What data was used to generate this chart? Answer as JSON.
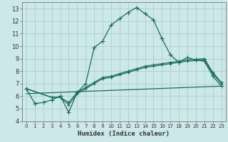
{
  "xlabel": "Humidex (Indice chaleur)",
  "bg_color": "#cde8e8",
  "grid_color": "#aacfcf",
  "line_color": "#1a6b5a",
  "xlim": [
    -0.5,
    23.5
  ],
  "ylim": [
    4,
    13.5
  ],
  "xticks": [
    0,
    1,
    2,
    3,
    4,
    5,
    6,
    7,
    8,
    9,
    10,
    11,
    12,
    13,
    14,
    15,
    16,
    17,
    18,
    19,
    20,
    21,
    22,
    23
  ],
  "yticks": [
    4,
    5,
    6,
    7,
    8,
    9,
    10,
    11,
    12,
    13
  ],
  "series1_x": [
    0,
    1,
    2,
    3,
    4,
    5,
    6,
    7,
    8,
    9,
    10,
    11,
    12,
    13,
    14,
    15,
    16,
    17,
    18,
    19,
    20,
    21,
    22,
    23
  ],
  "series1_y": [
    6.6,
    5.4,
    5.5,
    5.7,
    6.0,
    4.7,
    6.3,
    7.0,
    9.9,
    10.4,
    11.7,
    12.2,
    12.7,
    13.1,
    12.6,
    12.1,
    10.6,
    9.3,
    8.7,
    9.1,
    8.9,
    8.8,
    7.6,
    6.8
  ],
  "series2_x": [
    0,
    3,
    4,
    5,
    6,
    7,
    8,
    9,
    10,
    11,
    12,
    13,
    14,
    15,
    16,
    17,
    18,
    19,
    20,
    21,
    22,
    23
  ],
  "series2_y": [
    6.6,
    5.9,
    5.9,
    5.3,
    6.2,
    6.6,
    7.0,
    7.4,
    7.5,
    7.7,
    7.9,
    8.1,
    8.3,
    8.4,
    8.5,
    8.6,
    8.7,
    8.8,
    8.85,
    8.9,
    7.8,
    7.0
  ],
  "series3_x": [
    0,
    3,
    4,
    5,
    6,
    7,
    8,
    9,
    10,
    11,
    12,
    13,
    14,
    15,
    16,
    17,
    18,
    19,
    20,
    21,
    22,
    23
  ],
  "series3_y": [
    6.6,
    5.9,
    5.9,
    5.5,
    6.3,
    6.7,
    7.1,
    7.5,
    7.6,
    7.8,
    8.0,
    8.2,
    8.4,
    8.5,
    8.6,
    8.7,
    8.8,
    8.9,
    8.95,
    9.0,
    7.9,
    7.1
  ],
  "series4_x": [
    0,
    23
  ],
  "series4_y": [
    6.2,
    6.8
  ],
  "marker_size": 2.5,
  "line_width": 0.9
}
